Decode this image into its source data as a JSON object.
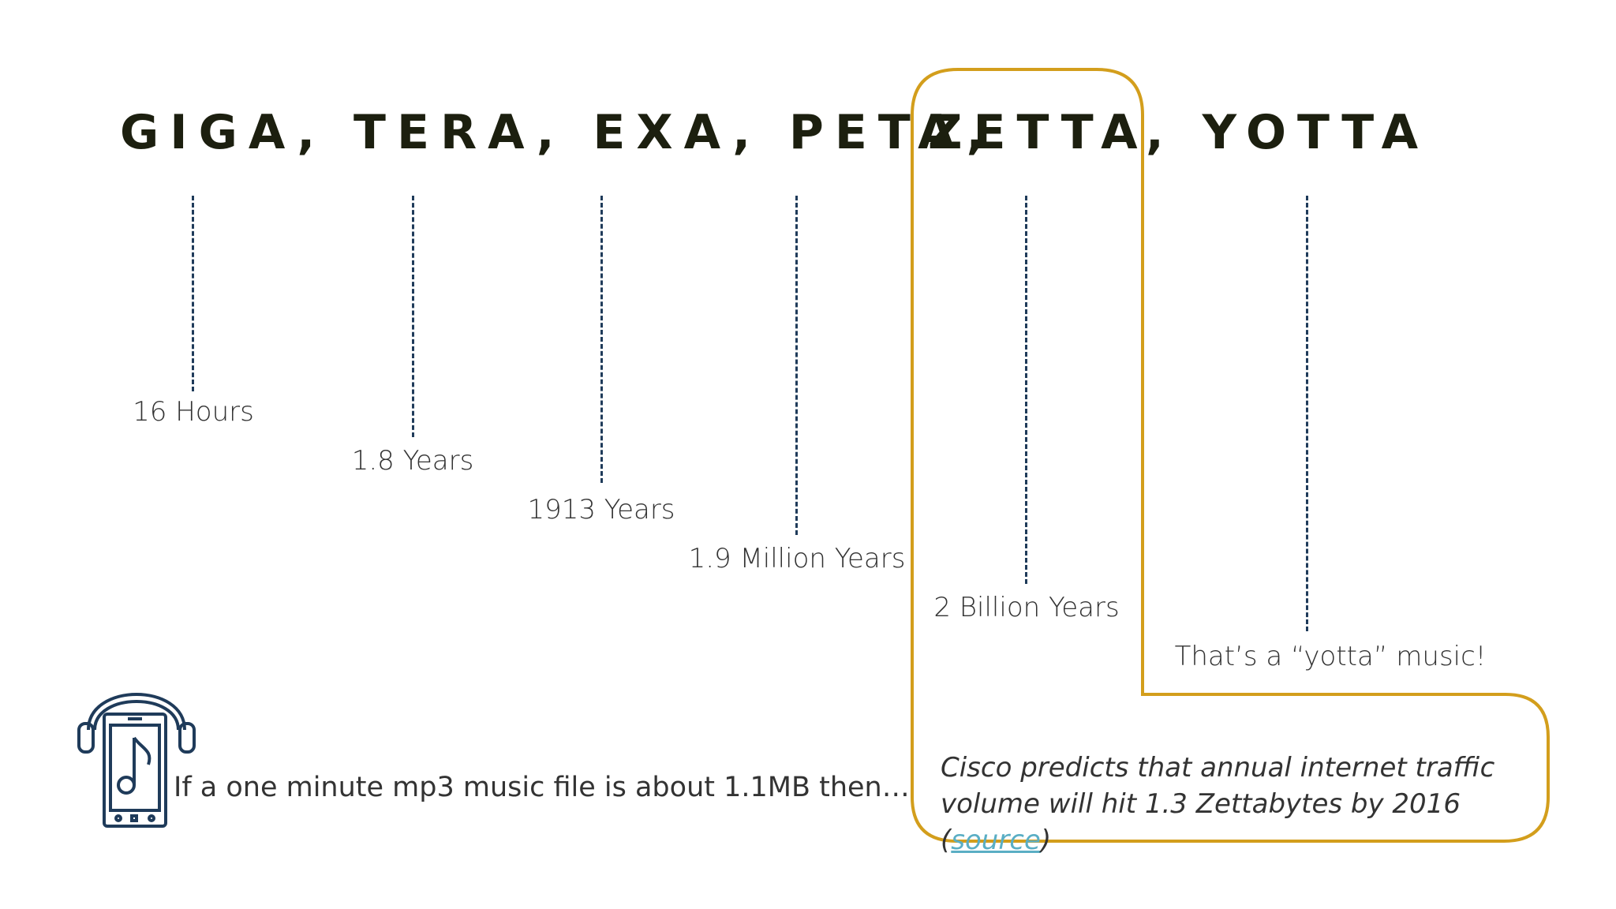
{
  "heading": {
    "part_pre": "GIGA, TERA, EXA, PETA,",
    "part_highlight": "ZETTA",
    "part_post": ", YOTTA"
  },
  "timeline": [
    {
      "label": "16 Hours"
    },
    {
      "label": "1.8 Years"
    },
    {
      "label": "1913 Years"
    },
    {
      "label": "1.9 Million Years"
    },
    {
      "label": "2 Billion Years"
    },
    {
      "label": "That’s a “yotta” music!"
    }
  ],
  "intro": {
    "text": "If a one minute mp3 music file is about 1.1MB then…"
  },
  "note": {
    "text": "Cisco predicts that annual internet traffic volume will hit 1.3 Zettabytes by 2016 (",
    "link": "source",
    "close": ")"
  },
  "icons": {
    "phone": "smartphone-headphones-music-icon"
  },
  "colors": {
    "accent": "#d39e1c",
    "line": "#1f3b5a",
    "heading": "#1c1f0f",
    "link": "#5aaec4"
  }
}
